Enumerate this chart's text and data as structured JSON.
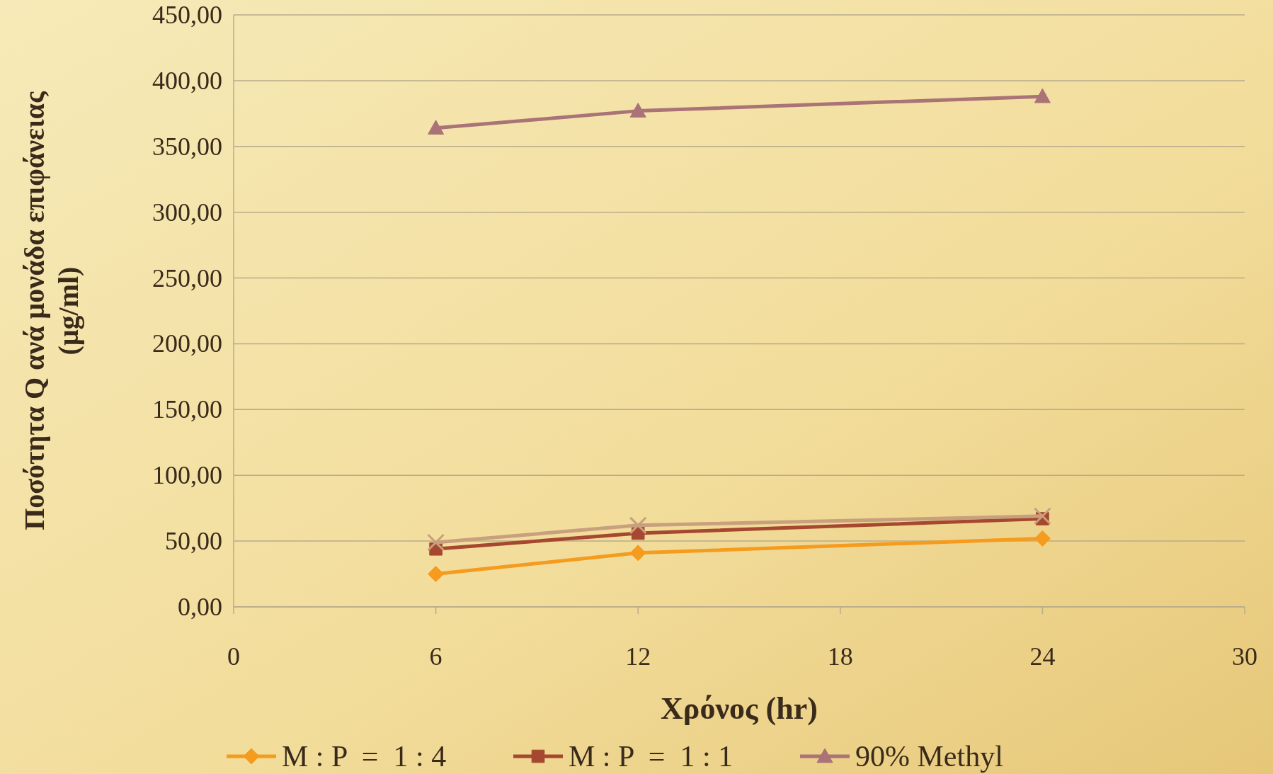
{
  "chart_data": {
    "type": "line",
    "xlabel": "Χρόνος (hr)",
    "ylabel": "Ποσότητα Q ανά μονάδα επιφάνειας\n(μg/ml)",
    "xlim": [
      0,
      30
    ],
    "xticks": [
      0,
      6,
      12,
      18,
      24,
      30
    ],
    "ylim": [
      0,
      450
    ],
    "yticks": [
      {
        "value": 0,
        "label": "0,00"
      },
      {
        "value": 50,
        "label": "50,00"
      },
      {
        "value": 100,
        "label": "100,00"
      },
      {
        "value": 150,
        "label": "150,00"
      },
      {
        "value": 200,
        "label": "200,00"
      },
      {
        "value": 250,
        "label": "250,00"
      },
      {
        "value": 300,
        "label": "300,00"
      },
      {
        "value": 350,
        "label": "350,00"
      },
      {
        "value": 400,
        "label": "400,00"
      },
      {
        "value": 450,
        "label": "450,00"
      }
    ],
    "grid": "y",
    "legend": "bottom",
    "series": [
      {
        "name": "M : P  =  1 : 4",
        "color": "#f59b1e",
        "marker": "diamond",
        "x": [
          6,
          12,
          24
        ],
        "values": [
          25,
          41,
          52
        ]
      },
      {
        "name": "M : P  =  1 : 1",
        "color": "#a5482f",
        "marker": "square",
        "x": [
          6,
          12,
          24
        ],
        "values": [
          44,
          56,
          67
        ]
      },
      {
        "name": "90% Methyl",
        "color": "#a97377",
        "marker": "triangle",
        "x": [
          6,
          12,
          24
        ],
        "values": [
          364,
          377,
          388
        ]
      },
      {
        "color": "#c8a07e",
        "marker": "cross",
        "x": [
          6,
          12,
          24
        ],
        "values": [
          49,
          62,
          69
        ]
      }
    ]
  }
}
